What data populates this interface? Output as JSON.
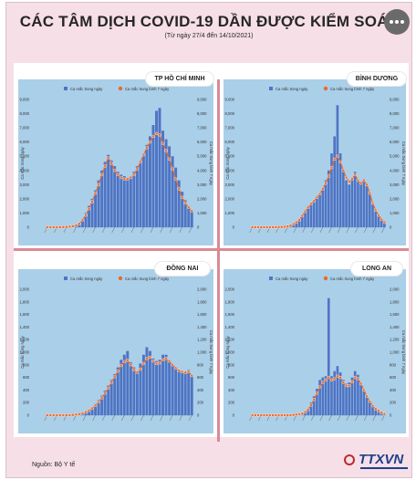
{
  "header": {
    "title": "CÁC TÂM DỊCH COVID-19 DẦN ĐƯỢC KIỂM SOÁT",
    "subtitle": "(Từ ngày 27/4 đến 14/10/2021)"
  },
  "footer": {
    "source": "Nguồn: Bộ Y tế",
    "logo": "TTXVN"
  },
  "colors": {
    "background": "#f6dfe7",
    "panel": "#aacfe8",
    "bars": "#4f74c4",
    "line": "#e8692e",
    "divider": "#d98a96"
  },
  "chart_data": [
    {
      "type": "bar",
      "title": "TP HỒ CHÍ MINH",
      "legend": [
        "Ca mắc trong ngày",
        "Ca mắc trung bình 7 ngày"
      ],
      "ylabel": "Ca mắc trong ngày",
      "ylabel_right": "Ca mắc trung bình 7 ngày",
      "ylim": [
        0,
        9000
      ],
      "yticks": [
        "0",
        "1,000",
        "2,000",
        "3,000",
        "4,000",
        "5,000",
        "6,000",
        "7,000",
        "8,000",
        "9,000"
      ],
      "series": [
        {
          "name": "Ca mắc trong ngày",
          "type": "bar",
          "values": [
            0,
            0,
            0,
            0,
            0,
            10,
            20,
            40,
            80,
            150,
            300,
            600,
            1000,
            1500,
            2000,
            2600,
            3300,
            4000,
            4600,
            5100,
            4700,
            4300,
            3900,
            3700,
            3600,
            3500,
            3600,
            3900,
            4300,
            4700,
            5200,
            5800,
            6400,
            7200,
            8200,
            8400,
            6800,
            6200,
            5700,
            5000,
            4200,
            3300,
            2500,
            1900,
            1500,
            1200
          ]
        },
        {
          "name": "Ca mắc trung bình 7 ngày",
          "type": "line",
          "values": [
            0,
            0,
            0,
            0,
            0,
            10,
            20,
            40,
            70,
            130,
            250,
            500,
            850,
            1300,
            1800,
            2400,
            3000,
            3700,
            4300,
            4900,
            4500,
            4000,
            3700,
            3500,
            3400,
            3400,
            3500,
            3700,
            4100,
            4600,
            5100,
            5600,
            6000,
            6400,
            6600,
            6500,
            5900,
            5400,
            4800,
            4100,
            3400,
            2700,
            2100,
            1700,
            1400,
            1150
          ]
        }
      ]
    },
    {
      "type": "bar",
      "title": "BÌNH DƯƠNG",
      "legend": [
        "Ca mắc trong ngày",
        "Ca mắc trung bình 7 ngày"
      ],
      "ylabel": "Ca mắc trong ngày",
      "ylabel_right": "Ca mắc trung bình 7 ngày",
      "ylim": [
        0,
        9000
      ],
      "yticks": [
        "0",
        "1,000",
        "2,000",
        "3,000",
        "4,000",
        "5,000",
        "6,000",
        "7,000",
        "8,000",
        "9,000"
      ],
      "series": [
        {
          "name": "Ca mắc trong ngày",
          "type": "bar",
          "values": [
            0,
            0,
            0,
            0,
            0,
            0,
            0,
            0,
            0,
            10,
            20,
            40,
            80,
            150,
            250,
            400,
            600,
            900,
            1200,
            1500,
            1700,
            1900,
            2200,
            2400,
            2800,
            3300,
            4000,
            5200,
            6400,
            8600,
            5200,
            4000,
            3300,
            3000,
            3500,
            3900,
            3300,
            3200,
            3400,
            3100,
            2400,
            1600,
            1100,
            800,
            500,
            300
          ]
        },
        {
          "name": "Ca mắc trung bình 7 ngày",
          "type": "line",
          "values": [
            0,
            0,
            0,
            0,
            0,
            0,
            0,
            0,
            0,
            10,
            20,
            30,
            60,
            120,
            220,
            350,
            520,
            800,
            1100,
            1400,
            1650,
            1850,
            2100,
            2350,
            2700,
            3100,
            3600,
            4200,
            4800,
            5000,
            4600,
            4000,
            3500,
            3200,
            3400,
            3700,
            3300,
            3100,
            3300,
            3000,
            2400,
            1700,
            1200,
            850,
            550,
            350
          ]
        }
      ]
    },
    {
      "type": "bar",
      "title": "ĐỒNG NAI",
      "legend": [
        "Ca mắc trong ngày",
        "Ca mắc trung bình 7 ngày"
      ],
      "ylabel": "Ca mắc trong ngày",
      "ylabel_right": "Ca mắc trung bình 7 ngày",
      "ylim": [
        0,
        2000
      ],
      "yticks": [
        "0",
        "200",
        "400",
        "600",
        "800",
        "1,000",
        "1,200",
        "1,400",
        "1,600",
        "1,800",
        "2,000"
      ],
      "series": [
        {
          "name": "Ca mắc trong ngày",
          "type": "bar",
          "values": [
            0,
            0,
            0,
            0,
            0,
            0,
            0,
            0,
            5,
            10,
            20,
            40,
            60,
            90,
            130,
            180,
            240,
            310,
            390,
            470,
            560,
            650,
            760,
            880,
            960,
            1020,
            840,
            760,
            700,
            820,
            960,
            1080,
            1020,
            900,
            860,
            880,
            960,
            960,
            880,
            800,
            760,
            720,
            700,
            680,
            720,
            620
          ]
        },
        {
          "name": "Ca mắc trung bình 7 ngày",
          "type": "line",
          "values": [
            0,
            0,
            0,
            0,
            0,
            0,
            0,
            0,
            5,
            10,
            18,
            32,
            50,
            75,
            110,
            155,
            210,
            275,
            350,
            430,
            520,
            610,
            700,
            790,
            850,
            870,
            800,
            720,
            680,
            730,
            820,
            900,
            920,
            860,
            820,
            830,
            880,
            900,
            860,
            800,
            750,
            710,
            690,
            680,
            690,
            630
          ]
        }
      ]
    },
    {
      "type": "bar",
      "title": "LONG AN",
      "legend": [
        "Ca mắc trong ngày",
        "Ca mắc trung bình 7 ngày"
      ],
      "ylabel": "Ca mắc trong ngày",
      "ylabel_right": "Ca mắc trung bình 7 ngày",
      "ylim": [
        0,
        2000
      ],
      "yticks": [
        "0",
        "200",
        "400",
        "600",
        "800",
        "1,000",
        "1,200",
        "1,400",
        "1,600",
        "1,800",
        "2,000"
      ],
      "series": [
        {
          "name": "Ca mắc trong ngày",
          "type": "bar",
          "values": [
            0,
            0,
            0,
            0,
            0,
            0,
            0,
            0,
            0,
            0,
            0,
            0,
            0,
            0,
            5,
            10,
            15,
            30,
            60,
            100,
            200,
            300,
            420,
            560,
            600,
            620,
            1860,
            620,
            700,
            780,
            680,
            560,
            500,
            520,
            600,
            700,
            640,
            520,
            400,
            300,
            220,
            150,
            100,
            70,
            40,
            20
          ]
        },
        {
          "name": "Ca mắc trung bình 7 ngày",
          "type": "line",
          "values": [
            0,
            0,
            0,
            0,
            0,
            0,
            0,
            0,
            0,
            0,
            0,
            0,
            0,
            0,
            5,
            10,
            15,
            25,
            50,
            90,
            160,
            250,
            350,
            450,
            520,
            560,
            600,
            560,
            580,
            620,
            600,
            520,
            470,
            470,
            530,
            600,
            580,
            500,
            400,
            300,
            220,
            150,
            100,
            70,
            40,
            20
          ]
        }
      ]
    }
  ]
}
